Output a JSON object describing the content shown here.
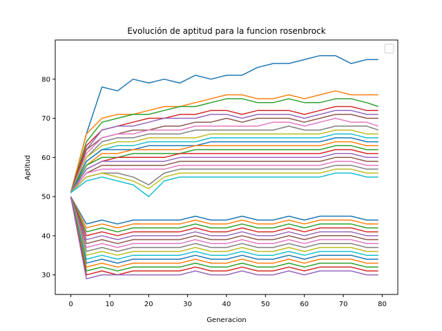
{
  "chart_data": {
    "type": "line",
    "title": "Evolución de aptitud para la funcion rosenbrock",
    "xlabel": "Generacion",
    "ylabel": "Aptitud",
    "xlim": [
      -4,
      84
    ],
    "ylim": [
      25,
      90
    ],
    "xticks": [
      0,
      10,
      20,
      30,
      40,
      50,
      60,
      70,
      80
    ],
    "yticks": [
      30,
      40,
      50,
      60,
      70,
      80
    ],
    "grid": false,
    "legend": "top-right (empty)",
    "colors": [
      "#1f77b4",
      "#ff7f0e",
      "#2ca02c",
      "#d62728",
      "#9467bd",
      "#8c564b",
      "#e377c2",
      "#7f7f7f",
      "#bcbd22",
      "#17becf"
    ],
    "x": [
      0,
      4,
      8,
      12,
      16,
      20,
      24,
      28,
      32,
      36,
      40,
      44,
      48,
      52,
      56,
      60,
      64,
      68,
      72,
      76,
      79
    ],
    "series": [
      {
        "values": [
          51,
          66,
          78,
          77,
          80,
          79,
          80,
          79,
          81,
          80,
          81,
          81,
          83,
          84,
          84,
          85,
          86,
          86,
          84,
          85,
          85
        ]
      },
      {
        "values": [
          51,
          66,
          70,
          71,
          71,
          72,
          73,
          73,
          74,
          75,
          76,
          76,
          75,
          75,
          76,
          75,
          76,
          77,
          76,
          76,
          76
        ]
      },
      {
        "values": [
          51,
          64,
          69,
          70,
          71,
          71,
          72,
          73,
          73,
          74,
          75,
          75,
          74,
          74,
          75,
          74,
          74,
          75,
          75,
          74,
          73
        ]
      },
      {
        "values": [
          51,
          63,
          67,
          68,
          69,
          70,
          70,
          71,
          71,
          72,
          72,
          71,
          72,
          72,
          72,
          71,
          72,
          73,
          73,
          72,
          72
        ]
      },
      {
        "values": [
          51,
          62,
          67,
          68,
          68,
          69,
          70,
          70,
          70,
          71,
          71,
          70,
          71,
          71,
          71,
          70,
          71,
          72,
          72,
          71,
          71
        ]
      },
      {
        "values": [
          51,
          62,
          65,
          66,
          67,
          67,
          68,
          68,
          69,
          69,
          70,
          69,
          70,
          70,
          70,
          69,
          70,
          71,
          71,
          70,
          70
        ]
      },
      {
        "values": [
          51,
          61,
          65,
          66,
          66,
          67,
          67,
          67,
          68,
          68,
          68,
          68,
          68,
          69,
          69,
          68,
          69,
          70,
          69,
          69,
          68
        ]
      },
      {
        "values": [
          51,
          60,
          64,
          65,
          65,
          66,
          66,
          66,
          67,
          67,
          67,
          67,
          67,
          67,
          68,
          67,
          67,
          68,
          68,
          68,
          67
        ]
      },
      {
        "values": [
          51,
          60,
          63,
          64,
          64,
          65,
          65,
          65,
          65,
          66,
          66,
          66,
          66,
          66,
          66,
          66,
          66,
          67,
          67,
          66,
          66
        ]
      },
      {
        "values": [
          51,
          59,
          62,
          63,
          63,
          64,
          64,
          64,
          64,
          65,
          65,
          65,
          65,
          65,
          65,
          65,
          65,
          66,
          66,
          65,
          65
        ]
      },
      {
        "values": [
          51,
          59,
          62,
          62,
          62,
          63,
          63,
          63,
          63,
          64,
          64,
          64,
          64,
          64,
          64,
          64,
          64,
          65,
          65,
          64,
          64
        ]
      },
      {
        "values": [
          51,
          58,
          61,
          61,
          62,
          62,
          62,
          62,
          63,
          63,
          63,
          63,
          63,
          63,
          63,
          63,
          63,
          64,
          64,
          63,
          63
        ]
      },
      {
        "values": [
          51,
          58,
          60,
          60,
          61,
          61,
          61,
          61,
          62,
          62,
          62,
          62,
          62,
          62,
          62,
          62,
          62,
          63,
          63,
          62,
          62
        ]
      },
      {
        "values": [
          51,
          57,
          59,
          60,
          60,
          60,
          60,
          61,
          61,
          61,
          61,
          61,
          61,
          61,
          61,
          61,
          61,
          62,
          62,
          61,
          61
        ]
      },
      {
        "values": [
          51,
          57,
          59,
          59,
          59,
          59,
          59,
          60,
          60,
          60,
          60,
          60,
          60,
          60,
          60,
          60,
          60,
          61,
          61,
          60,
          60
        ]
      },
      {
        "values": [
          51,
          56,
          58,
          58,
          58,
          58,
          58,
          59,
          59,
          59,
          59,
          59,
          59,
          59,
          59,
          59,
          59,
          60,
          60,
          59,
          59
        ]
      },
      {
        "values": [
          51,
          56,
          57,
          57,
          57,
          57,
          57,
          58,
          58,
          58,
          58,
          58,
          58,
          58,
          58,
          58,
          58,
          59,
          59,
          58,
          58
        ]
      },
      {
        "values": [
          51,
          55,
          56,
          56,
          55,
          53,
          56,
          57,
          57,
          57,
          57,
          57,
          57,
          57,
          57,
          57,
          57,
          58,
          58,
          57,
          57
        ]
      },
      {
        "values": [
          51,
          55,
          56,
          55,
          54,
          52,
          55,
          56,
          56,
          56,
          56,
          56,
          56,
          56,
          56,
          56,
          56,
          57,
          57,
          56,
          56
        ]
      },
      {
        "values": [
          51,
          54,
          55,
          54,
          53,
          50,
          54,
          55,
          55,
          55,
          55,
          55,
          55,
          55,
          55,
          55,
          55,
          56,
          56,
          55,
          55
        ]
      },
      {
        "values": [
          50,
          43,
          44,
          43,
          44,
          44,
          44,
          44,
          45,
          44,
          44,
          45,
          44,
          44,
          45,
          44,
          45,
          45,
          45,
          44,
          44
        ]
      },
      {
        "values": [
          50,
          42,
          43,
          42,
          43,
          43,
          43,
          43,
          44,
          43,
          43,
          44,
          43,
          43,
          44,
          43,
          44,
          44,
          44,
          43,
          43
        ]
      },
      {
        "values": [
          50,
          41,
          42,
          41,
          42,
          42,
          42,
          42,
          43,
          42,
          42,
          43,
          42,
          42,
          43,
          42,
          43,
          43,
          43,
          42,
          42
        ]
      },
      {
        "values": [
          50,
          40,
          41,
          40,
          41,
          41,
          41,
          41,
          42,
          41,
          41,
          42,
          41,
          41,
          42,
          41,
          42,
          42,
          42,
          41,
          41
        ]
      },
      {
        "values": [
          50,
          39,
          40,
          39,
          40,
          40,
          40,
          40,
          41,
          40,
          40,
          41,
          40,
          40,
          41,
          40,
          41,
          41,
          41,
          40,
          40
        ]
      },
      {
        "values": [
          50,
          38,
          39,
          38,
          39,
          39,
          39,
          39,
          40,
          39,
          39,
          40,
          39,
          39,
          40,
          39,
          40,
          40,
          40,
          39,
          39
        ]
      },
      {
        "values": [
          50,
          37,
          38,
          37,
          38,
          38,
          38,
          38,
          39,
          38,
          38,
          39,
          38,
          38,
          39,
          38,
          39,
          39,
          39,
          38,
          38
        ]
      },
      {
        "values": [
          50,
          36,
          37,
          36,
          37,
          37,
          37,
          37,
          38,
          37,
          37,
          38,
          37,
          37,
          38,
          37,
          38,
          38,
          38,
          37,
          37
        ]
      },
      {
        "values": [
          50,
          35,
          36,
          35,
          36,
          36,
          36,
          36,
          37,
          36,
          36,
          37,
          36,
          36,
          37,
          36,
          37,
          37,
          37,
          36,
          36
        ]
      },
      {
        "values": [
          50,
          34,
          35,
          34,
          35,
          35,
          35,
          35,
          36,
          35,
          35,
          36,
          35,
          35,
          36,
          35,
          36,
          36,
          36,
          35,
          35
        ]
      },
      {
        "values": [
          50,
          33,
          34,
          33,
          34,
          34,
          34,
          34,
          35,
          34,
          34,
          35,
          34,
          34,
          35,
          34,
          35,
          35,
          35,
          34,
          34
        ]
      },
      {
        "values": [
          50,
          32,
          33,
          32,
          33,
          33,
          33,
          33,
          34,
          33,
          33,
          34,
          33,
          33,
          34,
          33,
          34,
          34,
          34,
          33,
          33
        ]
      },
      {
        "values": [
          50,
          31,
          32,
          31,
          32,
          32,
          32,
          32,
          33,
          32,
          32,
          33,
          32,
          32,
          33,
          32,
          33,
          33,
          33,
          32,
          32
        ]
      },
      {
        "values": [
          50,
          30,
          31,
          30,
          31,
          31,
          31,
          31,
          32,
          31,
          31,
          32,
          31,
          31,
          32,
          31,
          32,
          32,
          32,
          31,
          31
        ]
      },
      {
        "values": [
          50,
          29,
          30,
          30,
          30,
          30,
          30,
          30,
          31,
          30,
          30,
          31,
          30,
          30,
          31,
          30,
          31,
          31,
          31,
          30,
          30
        ]
      }
    ]
  }
}
